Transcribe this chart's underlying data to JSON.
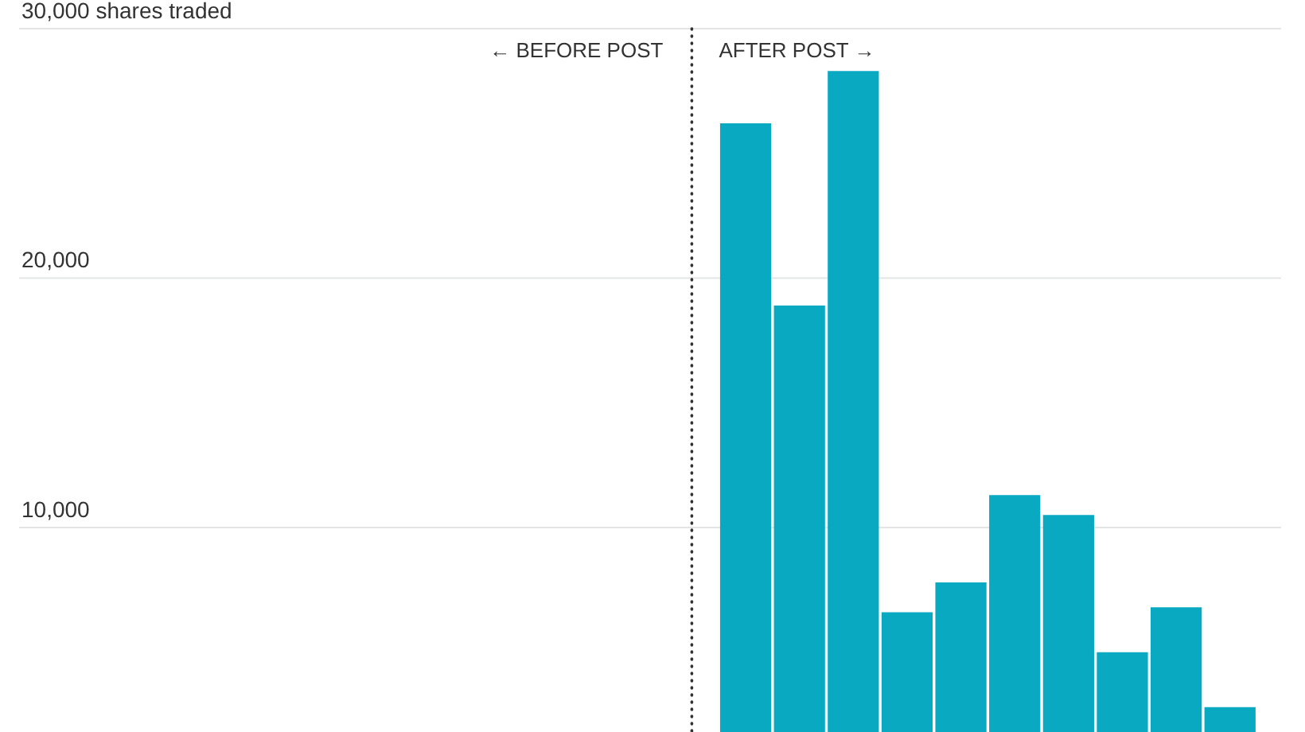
{
  "chart_data": {
    "type": "bar",
    "categories": [
      null,
      null,
      null,
      null,
      null,
      null,
      null,
      null,
      null,
      null,
      null,
      null,
      null,
      null,
      null,
      null,
      null,
      null,
      null,
      null,
      null,
      null,
      null
    ],
    "values": [
      null,
      null,
      null,
      null,
      null,
      null,
      null,
      null,
      null,
      null,
      null,
      null,
      null,
      26200,
      18900,
      28300,
      6600,
      7800,
      11300,
      10500,
      5000,
      6800,
      2800
    ],
    "color": "#0aa9c2",
    "ylim": [
      1800,
      30000
    ],
    "yticks": [
      {
        "value": 10000,
        "label": "10,000"
      },
      {
        "value": 20000,
        "label": "20,000"
      },
      {
        "value": 30000,
        "label": "30,000 shares traded"
      }
    ],
    "grid": "y",
    "tick_labels": "y",
    "ref_lines": [
      {
        "axis": "x",
        "line_style": "dotted",
        "color": "#333333"
      }
    ],
    "annotations": [
      "← BEFORE POST",
      "AFTER POST →"
    ]
  }
}
